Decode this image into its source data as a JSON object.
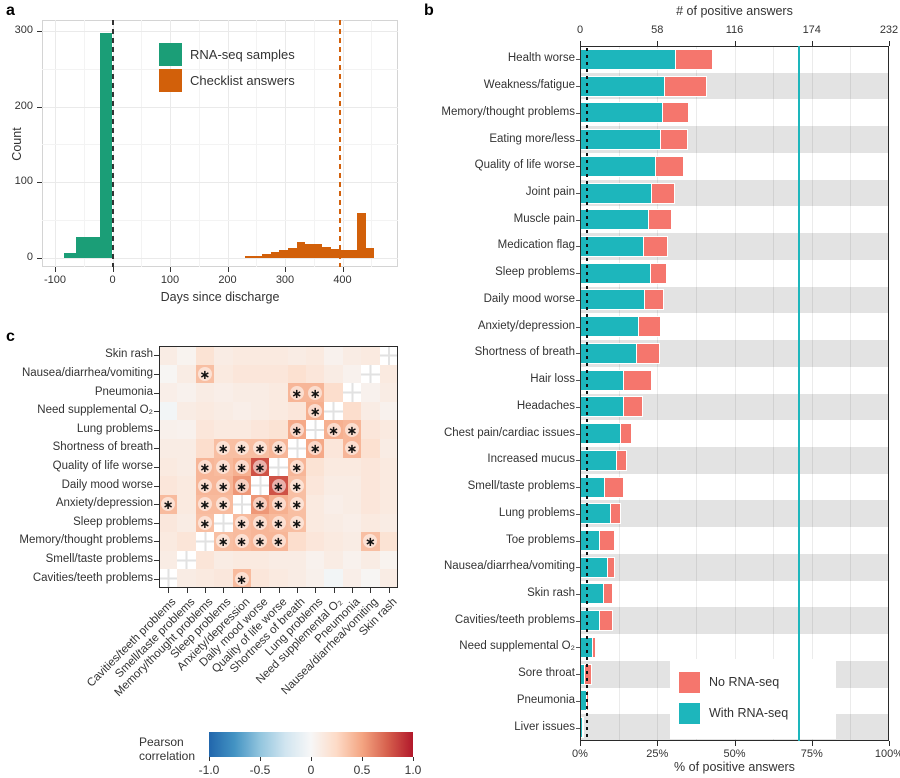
{
  "panels": {
    "a": {
      "label": "a",
      "xlabel": "Days since discharge",
      "ylabel": "Count"
    },
    "b": {
      "label": "b",
      "top_axis_label": "# of positive answers",
      "bottom_axis_label": "% of positive answers"
    },
    "c": {
      "label": "c",
      "colorbar_label": "Pearson correlation"
    }
  },
  "chart_data": [
    {
      "panel": "a",
      "type": "histogram",
      "xlabel": "Days since discharge",
      "ylabel": "Count",
      "x_ticks": [
        -100,
        0,
        100,
        200,
        300,
        400
      ],
      "y_ticks": [
        0,
        100,
        200,
        300
      ],
      "xlim": [
        -122,
        497
      ],
      "ylim": [
        0,
        314
      ],
      "series": [
        {
          "name": "RNA-seq samples",
          "color": "#1b9e77",
          "bin_start": -84,
          "bin_width": 21,
          "counts": [
            6,
            28,
            28,
            297
          ]
        },
        {
          "name": "Checklist answers",
          "color": "#d2600a",
          "bin_start": 230,
          "bin_width": 15,
          "counts": [
            2,
            2,
            5,
            8,
            10,
            13,
            21,
            19,
            19,
            15,
            12,
            11,
            10,
            60,
            13
          ]
        }
      ],
      "vlines": [
        {
          "x": 0,
          "color": "#333333",
          "style": "dashed"
        },
        {
          "x": 396,
          "color": "#d2600a",
          "style": "dashed"
        }
      ],
      "legend_position": "upper-center"
    },
    {
      "panel": "b",
      "type": "bar",
      "orientation": "horizontal",
      "stacked": true,
      "top_axis_label": "# of positive answers",
      "bottom_axis_label": "% of positive answers",
      "top_ticks": [
        0,
        58,
        116,
        174,
        232
      ],
      "bottom_tick_labels": [
        "0%",
        "25%",
        "50%",
        "75%",
        "100%"
      ],
      "total_n": 232,
      "categories": [
        "Health worse",
        "Weakness/fatigue",
        "Memory/thought problems",
        "Eating more/less",
        "Quality of life worse",
        "Joint pain",
        "Muscle pain",
        "Medication flag",
        "Sleep problems",
        "Daily mood worse",
        "Anxiety/depression",
        "Shortness of breath",
        "Hair loss",
        "Headaches",
        "Chest pain/cardiac issues",
        "Increased mucus",
        "Smell/taste problems",
        "Lung problems",
        "Toe problems",
        "Nausea/diarrhea/vomiting",
        "Skin rash",
        "Cavities/teeth problems",
        "Need supplemental O₂",
        "Sore throat",
        "Pneumonia",
        "Liver issues"
      ],
      "series": [
        {
          "name": "With RNA-seq",
          "color": "#1db6bc",
          "values": [
            72,
            64,
            62,
            61,
            57,
            54,
            52,
            48,
            53,
            49,
            44,
            43,
            33,
            33,
            31,
            28,
            19,
            23,
            15,
            21,
            18,
            15,
            10,
            4,
            5,
            2
          ]
        },
        {
          "name": "No RNA-seq",
          "color": "#f5766d",
          "values": [
            28,
            31,
            20,
            20,
            21,
            17,
            17,
            18,
            12,
            14,
            17,
            17,
            21,
            14,
            8,
            7,
            14,
            8,
            11,
            5,
            7,
            10,
            2,
            5,
            2,
            1
          ]
        }
      ],
      "legend": [
        {
          "label": "No RNA-seq",
          "color": "#f5766d"
        },
        {
          "label": "With RNA-seq",
          "color": "#1db6bc"
        }
      ],
      "vline": {
        "value_pct": 71,
        "color": "#1db6bc"
      },
      "dotted_vline_pct": 2,
      "stripe_color": "#e3e3e3"
    },
    {
      "panel": "c",
      "type": "heatmap",
      "colorbar_label": "Pearson correlation",
      "colorbar_ticks": [
        "-1.0",
        "-0.5",
        "0",
        "0.5",
        "1.0"
      ],
      "colormap": [
        "#2166ac",
        "#4393c3",
        "#92c5de",
        "#d1e5f0",
        "#f7f7f7",
        "#fddbc7",
        "#f4a582",
        "#d6604d",
        "#b2182b"
      ],
      "variables": [
        "Cavities/teeth problems",
        "Smell/taste problems",
        "Memory/thought problems",
        "Sleep problems",
        "Anxiety/depression",
        "Daily mood worse",
        "Quality of life worse",
        "Shortness of breath",
        "Lung problems",
        "Need supplemental O₂",
        "Pneumonia",
        "Nausea/diarrhea/vomiting",
        "Skin rash"
      ],
      "matrix": [
        [
          null,
          0.1,
          0.12,
          0.14,
          0.4,
          0.15,
          0.12,
          0.1,
          0.06,
          -0.03,
          0.08,
          0.02,
          0.1
        ],
        [
          0.1,
          null,
          0.16,
          0.1,
          0.12,
          0.12,
          0.1,
          0.1,
          0.05,
          0.1,
          0.05,
          0.1,
          0.04
        ],
        [
          0.12,
          0.16,
          null,
          0.38,
          0.4,
          0.42,
          0.42,
          0.22,
          0.15,
          0.12,
          0.1,
          0.38,
          0.18
        ],
        [
          0.14,
          0.1,
          0.38,
          null,
          0.4,
          0.42,
          0.4,
          0.38,
          0.12,
          0.1,
          0.08,
          0.12,
          0.1
        ],
        [
          0.4,
          0.12,
          0.4,
          0.4,
          null,
          0.55,
          0.45,
          0.38,
          0.12,
          0.08,
          0.1,
          0.15,
          0.12
        ],
        [
          0.15,
          0.12,
          0.42,
          0.42,
          0.55,
          null,
          0.8,
          0.38,
          0.15,
          0.1,
          0.1,
          0.15,
          0.12
        ],
        [
          0.12,
          0.1,
          0.42,
          0.4,
          0.45,
          0.8,
          null,
          0.42,
          0.18,
          0.12,
          0.12,
          0.15,
          0.12
        ],
        [
          0.1,
          0.1,
          0.22,
          0.38,
          0.38,
          0.38,
          0.42,
          null,
          0.48,
          0.15,
          0.42,
          0.2,
          0.1
        ],
        [
          0.06,
          0.05,
          0.15,
          0.12,
          0.12,
          0.15,
          0.18,
          0.48,
          null,
          0.45,
          0.42,
          0.15,
          0.12
        ],
        [
          -0.03,
          0.1,
          0.12,
          0.1,
          0.08,
          0.1,
          0.12,
          0.15,
          0.45,
          null,
          0.22,
          0.1,
          0.05
        ],
        [
          0.08,
          0.05,
          0.1,
          0.08,
          0.1,
          0.1,
          0.12,
          0.42,
          0.42,
          0.22,
          null,
          0.05,
          0.1
        ],
        [
          0.02,
          0.1,
          0.38,
          0.12,
          0.15,
          0.15,
          0.15,
          0.2,
          0.15,
          0.1,
          0.05,
          null,
          0.12
        ],
        [
          0.1,
          0.04,
          0.18,
          0.1,
          0.12,
          0.12,
          0.12,
          0.1,
          0.12,
          0.05,
          0.1,
          0.12,
          null
        ]
      ],
      "significant_pairs": [
        [
          0,
          4
        ],
        [
          2,
          3
        ],
        [
          2,
          4
        ],
        [
          2,
          5
        ],
        [
          2,
          6
        ],
        [
          2,
          11
        ],
        [
          3,
          4
        ],
        [
          3,
          5
        ],
        [
          3,
          6
        ],
        [
          3,
          7
        ],
        [
          4,
          5
        ],
        [
          4,
          6
        ],
        [
          4,
          7
        ],
        [
          5,
          6
        ],
        [
          5,
          7
        ],
        [
          6,
          7
        ],
        [
          7,
          8
        ],
        [
          7,
          10
        ],
        [
          8,
          9
        ],
        [
          8,
          10
        ]
      ]
    }
  ]
}
